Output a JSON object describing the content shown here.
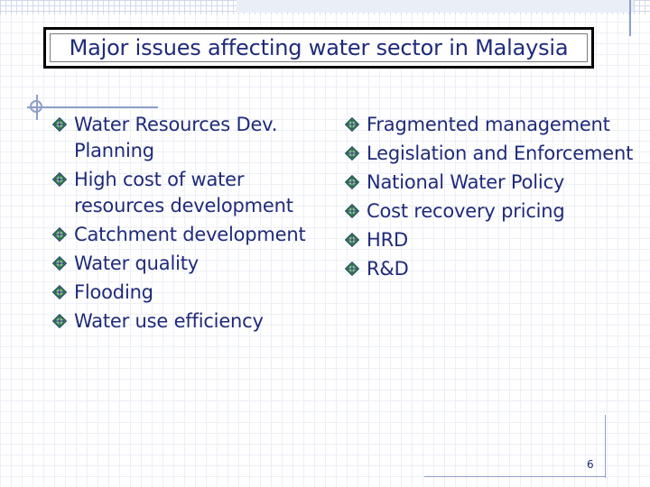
{
  "slide": {
    "title": "Major issues affecting water sector in Malaysia",
    "page_number": "6"
  },
  "left_column": [
    "Water Resources Dev. Planning",
    "High cost of water resources development",
    "Catchment development",
    "Water quality",
    "Flooding",
    "Water use efficiency"
  ],
  "right_column": [
    "Fragmented management",
    "Legislation and Enforcement",
    "National Water Policy",
    "Cost recovery pricing",
    "HRD",
    "R&D"
  ],
  "colors": {
    "text": "#1f2a7a",
    "bullet_fill": "#2f8a3a",
    "bullet_accent": "#1f2a7a"
  },
  "bullet_icon": "diamond-leaf-icon"
}
